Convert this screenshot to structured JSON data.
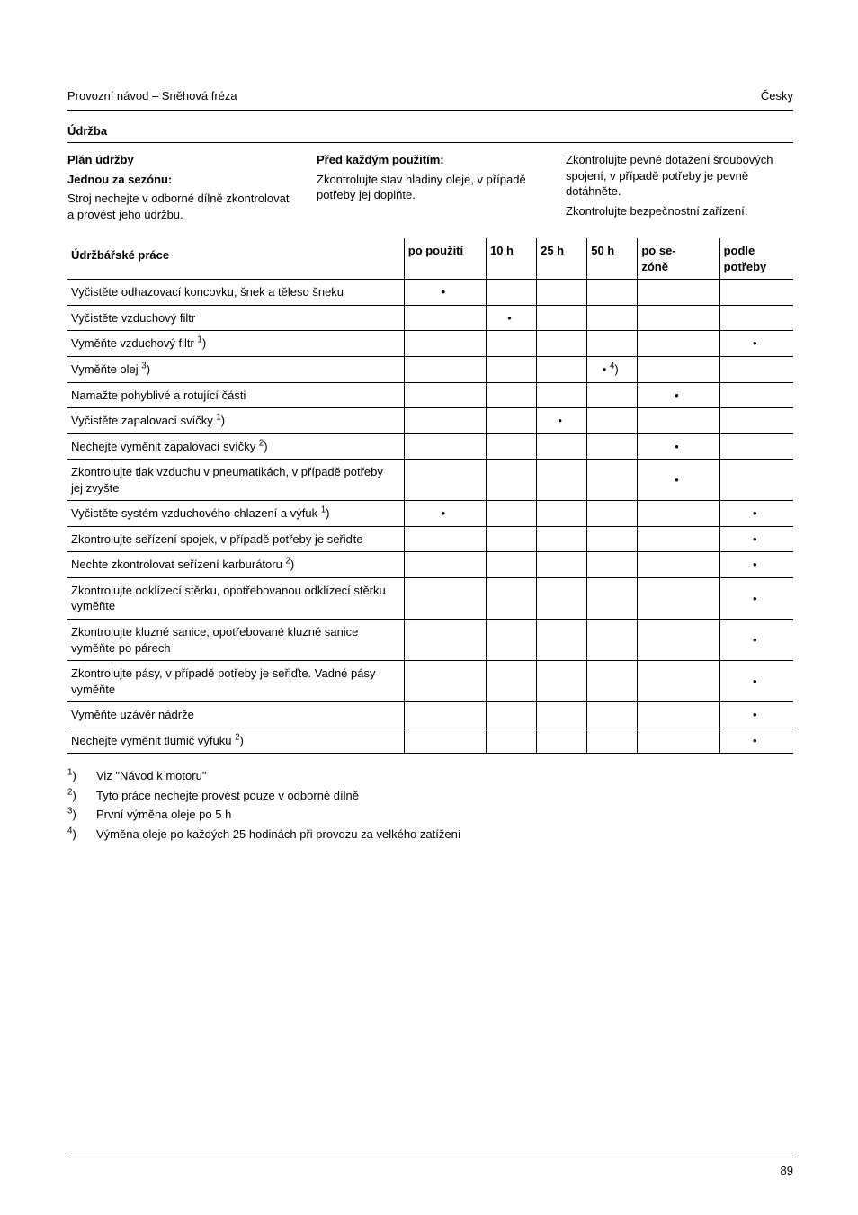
{
  "header": {
    "left": "Provozní návod – Sněhová fréza",
    "right": "Česky"
  },
  "section_title": "Údržba",
  "columns": {
    "left": {
      "heading": "Plán údržby",
      "sub_bold": "Jednou za sezónu:",
      "text": "Stroj nechejte v odborné dílně zkontrolovat a provést jeho údržbu."
    },
    "mid": {
      "heading": "Před každým použitím:",
      "text": "Zkontrolujte stav hladiny oleje, v případě potřeby jej doplňte."
    },
    "right": {
      "line1": "Zkontrolujte pevné dotažení šroubových spojení, v případě potřeby je pevně dotáhněte.",
      "line2": "Zkontrolujte bezpečnostní zařízení."
    }
  },
  "table": {
    "headers": [
      "Údržbářské práce",
      "po použití",
      "10 h",
      "25 h",
      "50 h",
      "po se-\nzóně",
      "podle\npotřeby"
    ],
    "rows": [
      {
        "task": "Vyčistěte odhazovací koncovku, šnek a těleso šneku",
        "dots": [
          "•",
          "",
          "",
          "",
          "",
          ""
        ]
      },
      {
        "task": "Vyčistěte vzduchový filtr",
        "dots": [
          "",
          "•",
          "",
          "",
          "",
          ""
        ]
      },
      {
        "task_html": "Vyměňte vzduchový filtr <sup>1</sup>)",
        "dots": [
          "",
          "",
          "",
          "",
          "",
          "•"
        ]
      },
      {
        "task_html": "Vyměňte olej <sup>3</sup>)",
        "dots": [
          "",
          "",
          "",
          "• 4)",
          "",
          ""
        ],
        "dot50_html": "•&nbsp;<sup>4</sup>)"
      },
      {
        "task": "Namažte pohyblivé a rotující části",
        "dots": [
          "",
          "",
          "",
          "",
          "•",
          ""
        ]
      },
      {
        "task_html": "Vyčistěte zapalovací svíčky <sup>1</sup>)",
        "dots": [
          "",
          "",
          "•",
          "",
          "",
          ""
        ]
      },
      {
        "task_html": "Nechejte vyměnit zapalovací svíčky <sup>2</sup>)",
        "dots": [
          "",
          "",
          "",
          "",
          "•",
          ""
        ]
      },
      {
        "task": "Zkontrolujte tlak vzduchu v pneumatikách, v případě potřeby jej zvyšte",
        "dots": [
          "",
          "",
          "",
          "",
          "•",
          ""
        ]
      },
      {
        "task_html": "Vyčistěte systém vzduchového chlazení a výfuk <sup>1</sup>)",
        "dots": [
          "•",
          "",
          "",
          "",
          "",
          "•"
        ]
      },
      {
        "task": "Zkontrolujte seřízení spojek, v případě potřeby je seřiďte",
        "dots": [
          "",
          "",
          "",
          "",
          "",
          "•"
        ]
      },
      {
        "task_html": "Nechte zkontrolovat seřízení karburátoru <sup>2</sup>)",
        "dots": [
          "",
          "",
          "",
          "",
          "",
          "•"
        ]
      },
      {
        "task": "Zkontrolujte odklízecí stěrku, opotřebovanou odklízecí stěrku vyměňte",
        "dots": [
          "",
          "",
          "",
          "",
          "",
          "•"
        ]
      },
      {
        "task": "Zkontrolujte kluzné sanice, opotřebované kluzné sanice vyměňte po párech",
        "dots": [
          "",
          "",
          "",
          "",
          "",
          "•"
        ]
      },
      {
        "task": "Zkontrolujte pásy, v případě potřeby je seřiďte. Vadné pásy vyměňte",
        "dots": [
          "",
          "",
          "",
          "",
          "",
          "•"
        ]
      },
      {
        "task": "Vyměňte uzávěr nádrže",
        "dots": [
          "",
          "",
          "",
          "",
          "",
          "•"
        ]
      },
      {
        "task_html": "Nechejte vyměnit tlumič výfuku <sup>2</sup>)",
        "dots": [
          "",
          "",
          "",
          "",
          "",
          "•"
        ]
      }
    ]
  },
  "footnotes": [
    {
      "mark": "1)",
      "mark_html": "<sup>1</sup>)",
      "text": "Viz \"Návod k motoru\""
    },
    {
      "mark": "2)",
      "mark_html": "<sup>2</sup>)",
      "text": "Tyto práce nechejte provést pouze v odborné dílně"
    },
    {
      "mark": "3)",
      "mark_html": "<sup>3</sup>)",
      "text": "První výměna oleje po 5 h"
    },
    {
      "mark": "4)",
      "mark_html": "<sup>4</sup>)",
      "text": "Výměna oleje po každých 25 hodinách při provozu za velkého zatížení"
    }
  ],
  "page_number": "89"
}
